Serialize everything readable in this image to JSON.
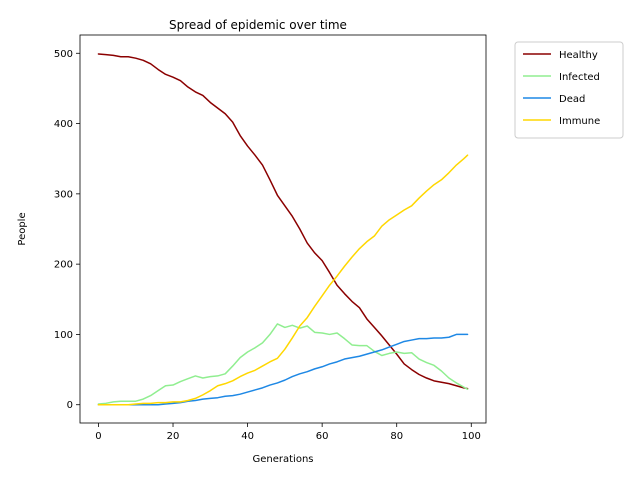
{
  "chart_data": {
    "type": "line",
    "title": "Spread of epidemic over time",
    "xlabel": "Generations",
    "ylabel": "People",
    "xlim": [
      -4.95,
      103.95
    ],
    "ylim": [
      -26,
      526
    ],
    "x_ticks": [
      0,
      20,
      40,
      60,
      80,
      100
    ],
    "y_ticks": [
      0,
      100,
      200,
      300,
      400,
      500
    ],
    "grid": false,
    "legend_position": "outside-top-right",
    "series": [
      {
        "name": "Healthy",
        "color": "#8b0000",
        "x": [
          0,
          2,
          4,
          6,
          8,
          10,
          12,
          14,
          16,
          18,
          20,
          22,
          24,
          26,
          28,
          30,
          32,
          34,
          36,
          38,
          40,
          42,
          44,
          46,
          48,
          50,
          52,
          54,
          56,
          58,
          60,
          62,
          64,
          66,
          68,
          70,
          72,
          74,
          76,
          78,
          80,
          82,
          84,
          86,
          88,
          90,
          92,
          94,
          96,
          98,
          99
        ],
        "values": [
          499,
          498,
          497,
          495,
          495,
          493,
          490,
          485,
          477,
          470,
          466,
          461,
          452,
          445,
          440,
          430,
          422,
          414,
          402,
          383,
          368,
          355,
          341,
          320,
          298,
          283,
          268,
          250,
          230,
          216,
          205,
          188,
          170,
          158,
          147,
          138,
          122,
          110,
          98,
          85,
          72,
          58,
          50,
          43,
          38,
          34,
          32,
          30,
          27,
          24,
          23
        ]
      },
      {
        "name": "Infected",
        "color": "#90ee90",
        "x": [
          0,
          2,
          4,
          6,
          8,
          10,
          12,
          14,
          16,
          18,
          20,
          22,
          24,
          26,
          28,
          30,
          32,
          34,
          36,
          38,
          40,
          42,
          44,
          46,
          48,
          50,
          52,
          54,
          56,
          58,
          60,
          62,
          64,
          66,
          68,
          70,
          72,
          74,
          76,
          78,
          80,
          82,
          84,
          86,
          88,
          90,
          92,
          94,
          96,
          98,
          99
        ],
        "values": [
          1,
          2,
          4,
          5,
          5,
          5,
          8,
          13,
          20,
          27,
          28,
          33,
          37,
          41,
          38,
          40,
          41,
          44,
          55,
          67,
          75,
          81,
          88,
          100,
          115,
          110,
          113,
          109,
          112,
          103,
          102,
          100,
          102,
          94,
          85,
          84,
          84,
          76,
          70,
          73,
          75,
          73,
          74,
          65,
          60,
          56,
          48,
          38,
          31,
          25,
          22
        ]
      },
      {
        "name": "Dead",
        "color": "#1e88e5",
        "x": [
          0,
          2,
          4,
          6,
          8,
          10,
          12,
          14,
          16,
          18,
          20,
          22,
          24,
          26,
          28,
          30,
          32,
          34,
          36,
          38,
          40,
          42,
          44,
          46,
          48,
          50,
          52,
          54,
          56,
          58,
          60,
          62,
          64,
          66,
          68,
          70,
          72,
          74,
          76,
          78,
          80,
          82,
          84,
          86,
          88,
          90,
          92,
          94,
          96,
          98,
          99
        ],
        "values": [
          0,
          0,
          0,
          0,
          0,
          0,
          0,
          0,
          0,
          1,
          2,
          3,
          5,
          6,
          8,
          9,
          10,
          12,
          13,
          15,
          18,
          21,
          24,
          28,
          31,
          35,
          40,
          44,
          47,
          51,
          54,
          58,
          61,
          65,
          67,
          69,
          72,
          75,
          78,
          82,
          86,
          90,
          92,
          94,
          94,
          95,
          95,
          96,
          100,
          100,
          100
        ]
      },
      {
        "name": "Immune",
        "color": "#ffd700",
        "x": [
          0,
          2,
          4,
          6,
          8,
          10,
          12,
          14,
          16,
          18,
          20,
          22,
          24,
          26,
          28,
          30,
          32,
          34,
          36,
          38,
          40,
          42,
          44,
          46,
          48,
          50,
          52,
          54,
          56,
          58,
          60,
          62,
          64,
          66,
          68,
          70,
          72,
          74,
          76,
          78,
          80,
          82,
          84,
          86,
          88,
          90,
          92,
          94,
          96,
          98,
          99
        ],
        "values": [
          0,
          0,
          0,
          0,
          0,
          1,
          2,
          2,
          3,
          3,
          4,
          4,
          6,
          9,
          14,
          20,
          27,
          30,
          34,
          40,
          45,
          49,
          55,
          61,
          66,
          79,
          95,
          112,
          124,
          140,
          155,
          170,
          183,
          197,
          210,
          222,
          232,
          240,
          254,
          263,
          270,
          277,
          283,
          294,
          304,
          313,
          320,
          330,
          341,
          350,
          355
        ]
      }
    ]
  }
}
